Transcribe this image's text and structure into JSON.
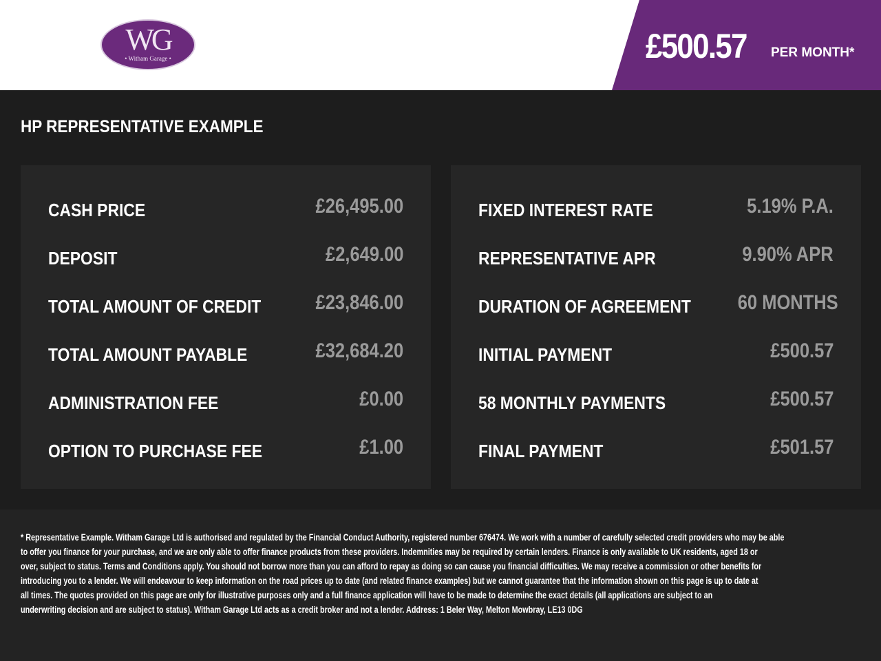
{
  "header": {
    "logo_text": "WG",
    "logo_sub": "• Witham Garage •",
    "price": "£500.57",
    "per": "PER MONTH*",
    "brand_color": "#68297a"
  },
  "title": "HP REPRESENTATIVE EXAMPLE",
  "left": [
    {
      "label": "CASH PRICE",
      "value": "£26,495.00"
    },
    {
      "label": "DEPOSIT",
      "value": "£2,649.00"
    },
    {
      "label": "TOTAL AMOUNT OF CREDIT",
      "value": "£23,846.00"
    },
    {
      "label": "TOTAL AMOUNT PAYABLE",
      "value": "£32,684.20"
    },
    {
      "label": "ADMINISTRATION FEE",
      "value": "£0.00"
    },
    {
      "label": "OPTION TO PURCHASE FEE",
      "value": "£1.00"
    }
  ],
  "right": [
    {
      "label": "FIXED INTEREST RATE",
      "value": "5.19% P.A."
    },
    {
      "label": "REPRESENTATIVE APR",
      "value": "9.90% APR"
    },
    {
      "label": "DURATION OF AGREEMENT",
      "value": "60 MONTHS"
    },
    {
      "label": "INITIAL PAYMENT",
      "value": "£500.57"
    },
    {
      "label": "58 MONTHLY PAYMENTS",
      "value": "£500.57"
    },
    {
      "label": "FINAL PAYMENT",
      "value": "£501.57"
    }
  ],
  "footer": [
    "* Representative Example. Witham Garage Ltd is authorised and regulated by the Financial Conduct Authority, registered number 676474. We work with a number of carefully selected credit providers who may be able",
    "to offer you finance for your purchase, and we are only able to offer finance products from these providers. Indemnities may be required by certain lenders. Finance is only available to UK residents, aged 18 or",
    "over, subject to status. Terms and Conditions apply. You should not borrow more than you can afford to repay as doing so can cause you financial difficulties. We may receive a commission or other benefits for",
    "introducing you to a lender. We will endeavour to keep information on the road prices up to date (and related finance examples) but we cannot guarantee that the information shown on this page is up to date at",
    "all times. The quotes provided on this page are only for illustrative purposes only and a full finance application will have to be made to determine the exact details (all applications are subject to an",
    "underwriting decision and are subject to status). Witham Garage Ltd acts as a credit broker and not a lender. Address: 1 Beler Way, Melton Mowbray, LE13 0DG"
  ]
}
